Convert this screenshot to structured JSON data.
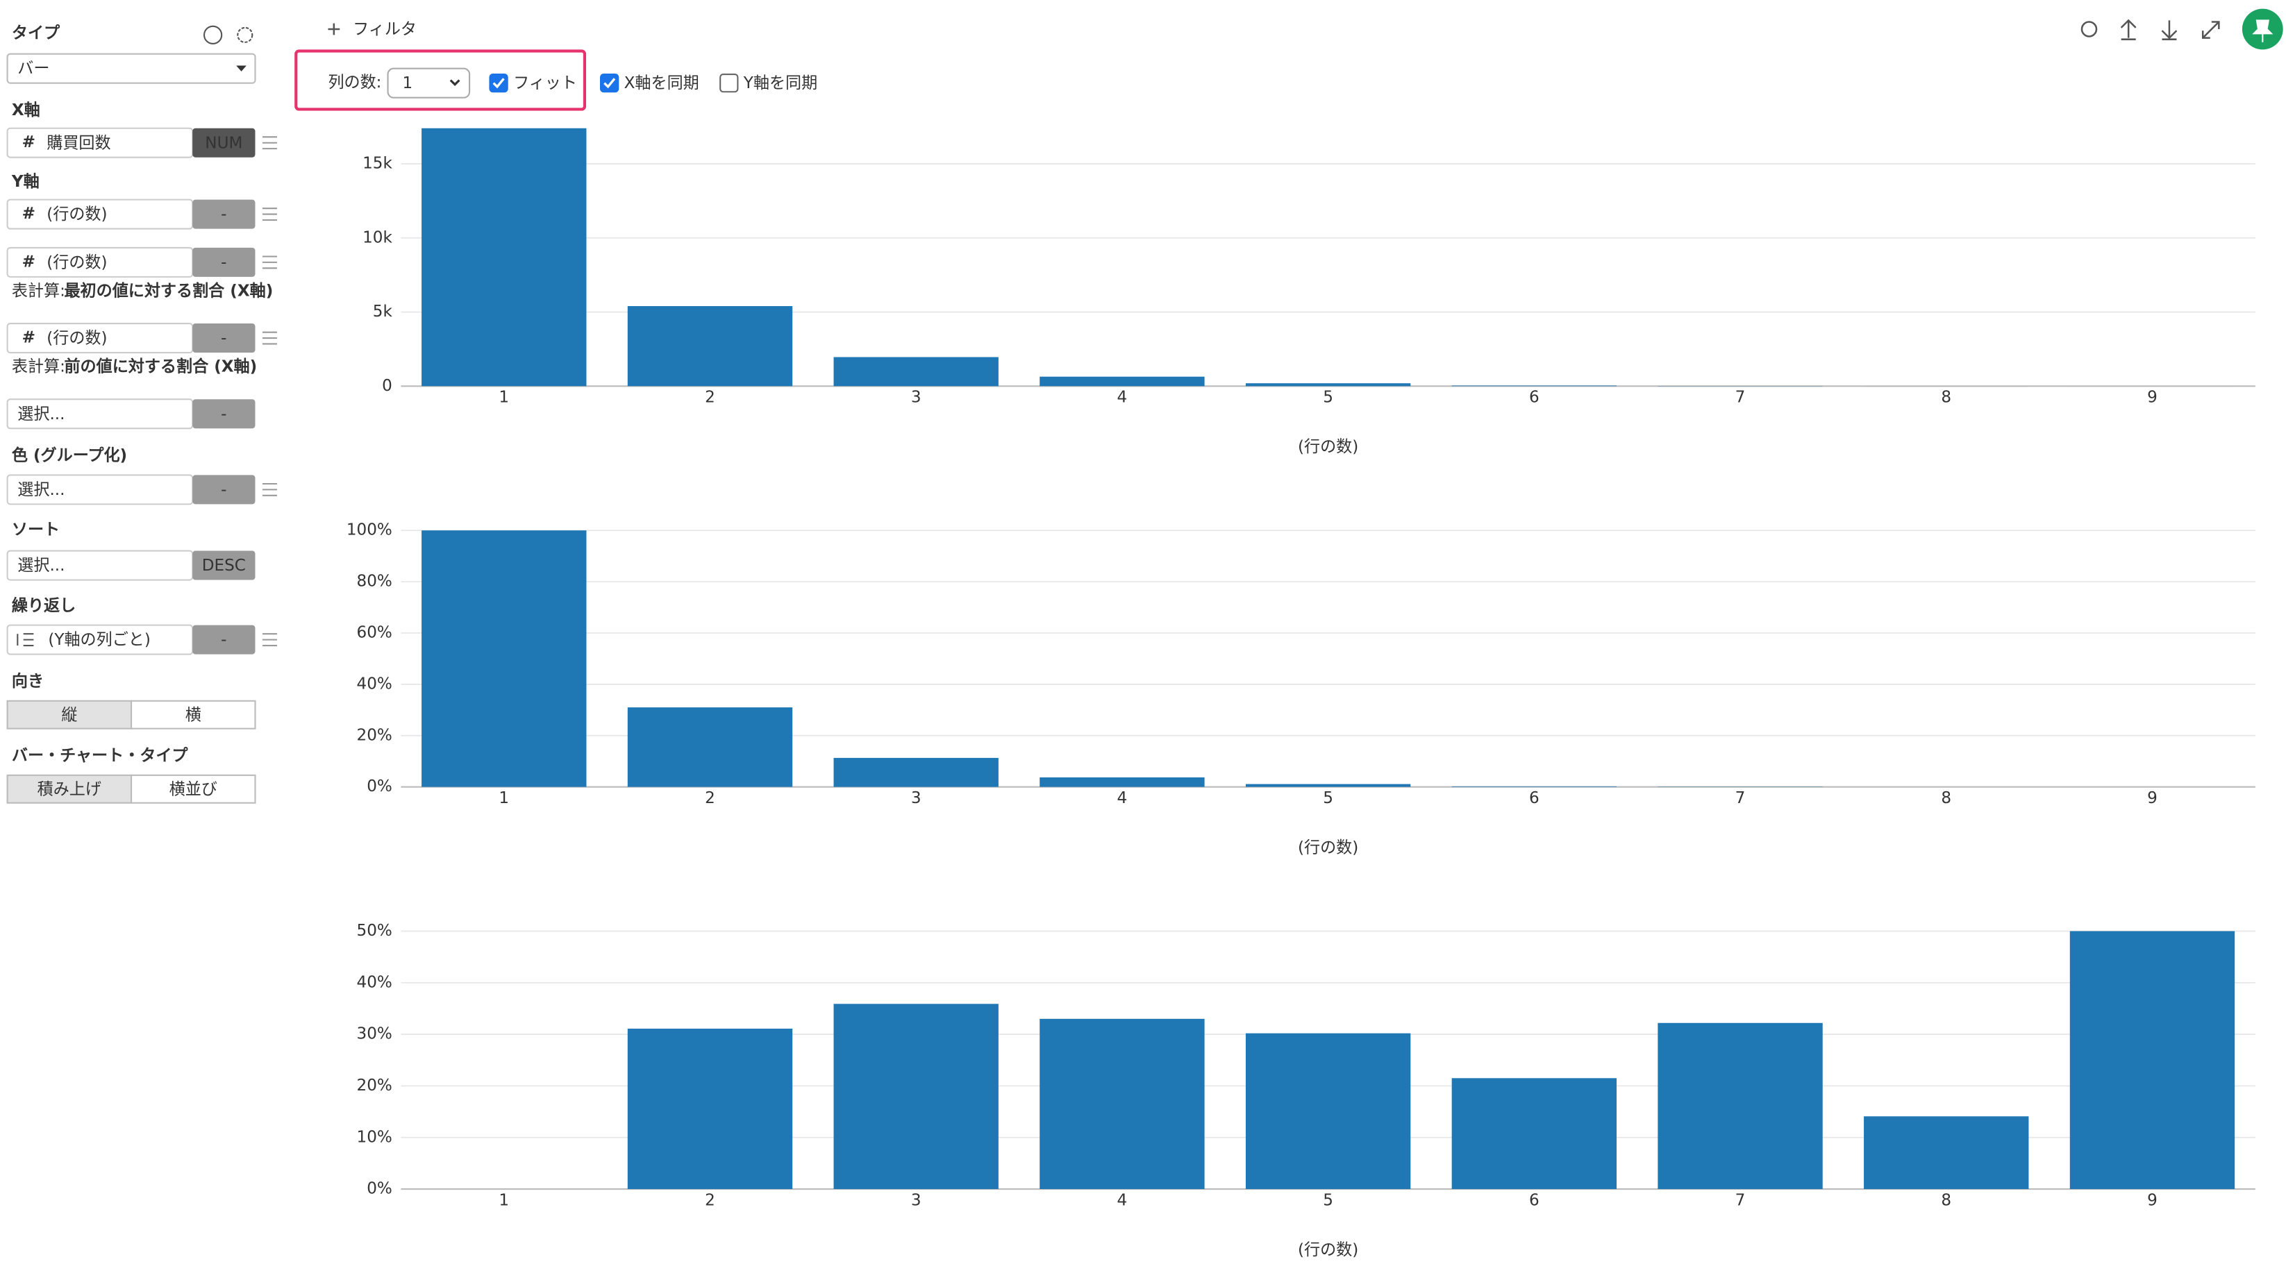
{
  "sidebar": {
    "type": {
      "label": "タイプ",
      "value": "バー"
    },
    "x_axis": {
      "label": "X軸",
      "icon": "#",
      "field": "購買回数",
      "badge": "NUM"
    },
    "y_axis": {
      "label": "Y軸",
      "fields": [
        {
          "icon": "#",
          "field": "(行の数)",
          "badge": "-"
        },
        {
          "icon": "#",
          "field": "(行の数)",
          "badge": "-",
          "calc_prefix": "表計算:",
          "calc": "最初の値に対する割合 (X軸)"
        },
        {
          "icon": "#",
          "field": "(行の数)",
          "badge": "-",
          "calc_prefix": "表計算:",
          "calc": "前の値に対する割合 (X軸)"
        },
        {
          "field": "選択...",
          "badge": "-"
        }
      ]
    },
    "color": {
      "label": "色 (グループ化)",
      "field": "選択...",
      "badge": "-"
    },
    "sort": {
      "label": "ソート",
      "placeholder": "選択...",
      "badge": "DESC"
    },
    "repeat": {
      "label": "繰り返し",
      "field": "(Y軸の列ごと)",
      "badge": "-"
    },
    "orientation": {
      "label": "向き",
      "options": [
        "縦",
        "横"
      ]
    },
    "bar_type": {
      "label": "バー・チャート・タイプ",
      "options": [
        "積み上げ",
        "横並び"
      ]
    }
  },
  "toolbar": {
    "filter": "フィルタ",
    "columns_label": "列の数:",
    "columns_value": "1",
    "fit": "フィット",
    "sync_x": "X軸を同期",
    "sync_y": "Y軸を同期"
  },
  "chart_data": [
    {
      "type": "bar",
      "x_label": "(行の数)",
      "color": "#1f77b4",
      "grid": true,
      "categories": [
        "1",
        "2",
        "3",
        "4",
        "5",
        "6",
        "7",
        "8",
        "9"
      ],
      "values": [
        17400,
        5400,
        1960,
        640,
        195,
        42,
        14,
        2,
        1
      ],
      "ylim": [
        0,
        17400
      ],
      "yticks": [
        0,
        {
          "value": 5000,
          "label": "5k"
        },
        {
          "value": 10000,
          "label": "10k"
        },
        {
          "value": 15000,
          "label": "15k"
        }
      ]
    },
    {
      "type": "bar",
      "x_label": "(行の数)",
      "color": "#1f77b4",
      "grid": true,
      "categories": [
        "1",
        "2",
        "3",
        "4",
        "5",
        "6",
        "7",
        "8",
        "9"
      ],
      "values": [
        100,
        31,
        11.3,
        3.7,
        1.1,
        0.2,
        0.1,
        0,
        0
      ],
      "ylim": [
        0,
        100
      ],
      "yticks": [
        {
          "value": 0,
          "label": "0%"
        },
        {
          "value": 20,
          "label": "20%"
        },
        {
          "value": 40,
          "label": "40%"
        },
        {
          "value": 60,
          "label": "60%"
        },
        {
          "value": 80,
          "label": "80%"
        },
        {
          "value": 100,
          "label": "100%"
        }
      ]
    },
    {
      "type": "bar",
      "x_label": "(行の数)",
      "color": "#1f77b4",
      "grid": true,
      "categories": [
        "1",
        "2",
        "3",
        "4",
        "5",
        "6",
        "7",
        "8",
        "9"
      ],
      "values": [
        null,
        31.1,
        35.9,
        33,
        30.2,
        21.5,
        32.2,
        14.1,
        50
      ],
      "ylim": [
        0,
        50
      ],
      "yticks": [
        {
          "value": 0,
          "label": "0%"
        },
        {
          "value": 10,
          "label": "10%"
        },
        {
          "value": 20,
          "label": "20%"
        },
        {
          "value": 30,
          "label": "30%"
        },
        {
          "value": 40,
          "label": "40%"
        },
        {
          "value": 50,
          "label": "50%"
        }
      ]
    }
  ]
}
